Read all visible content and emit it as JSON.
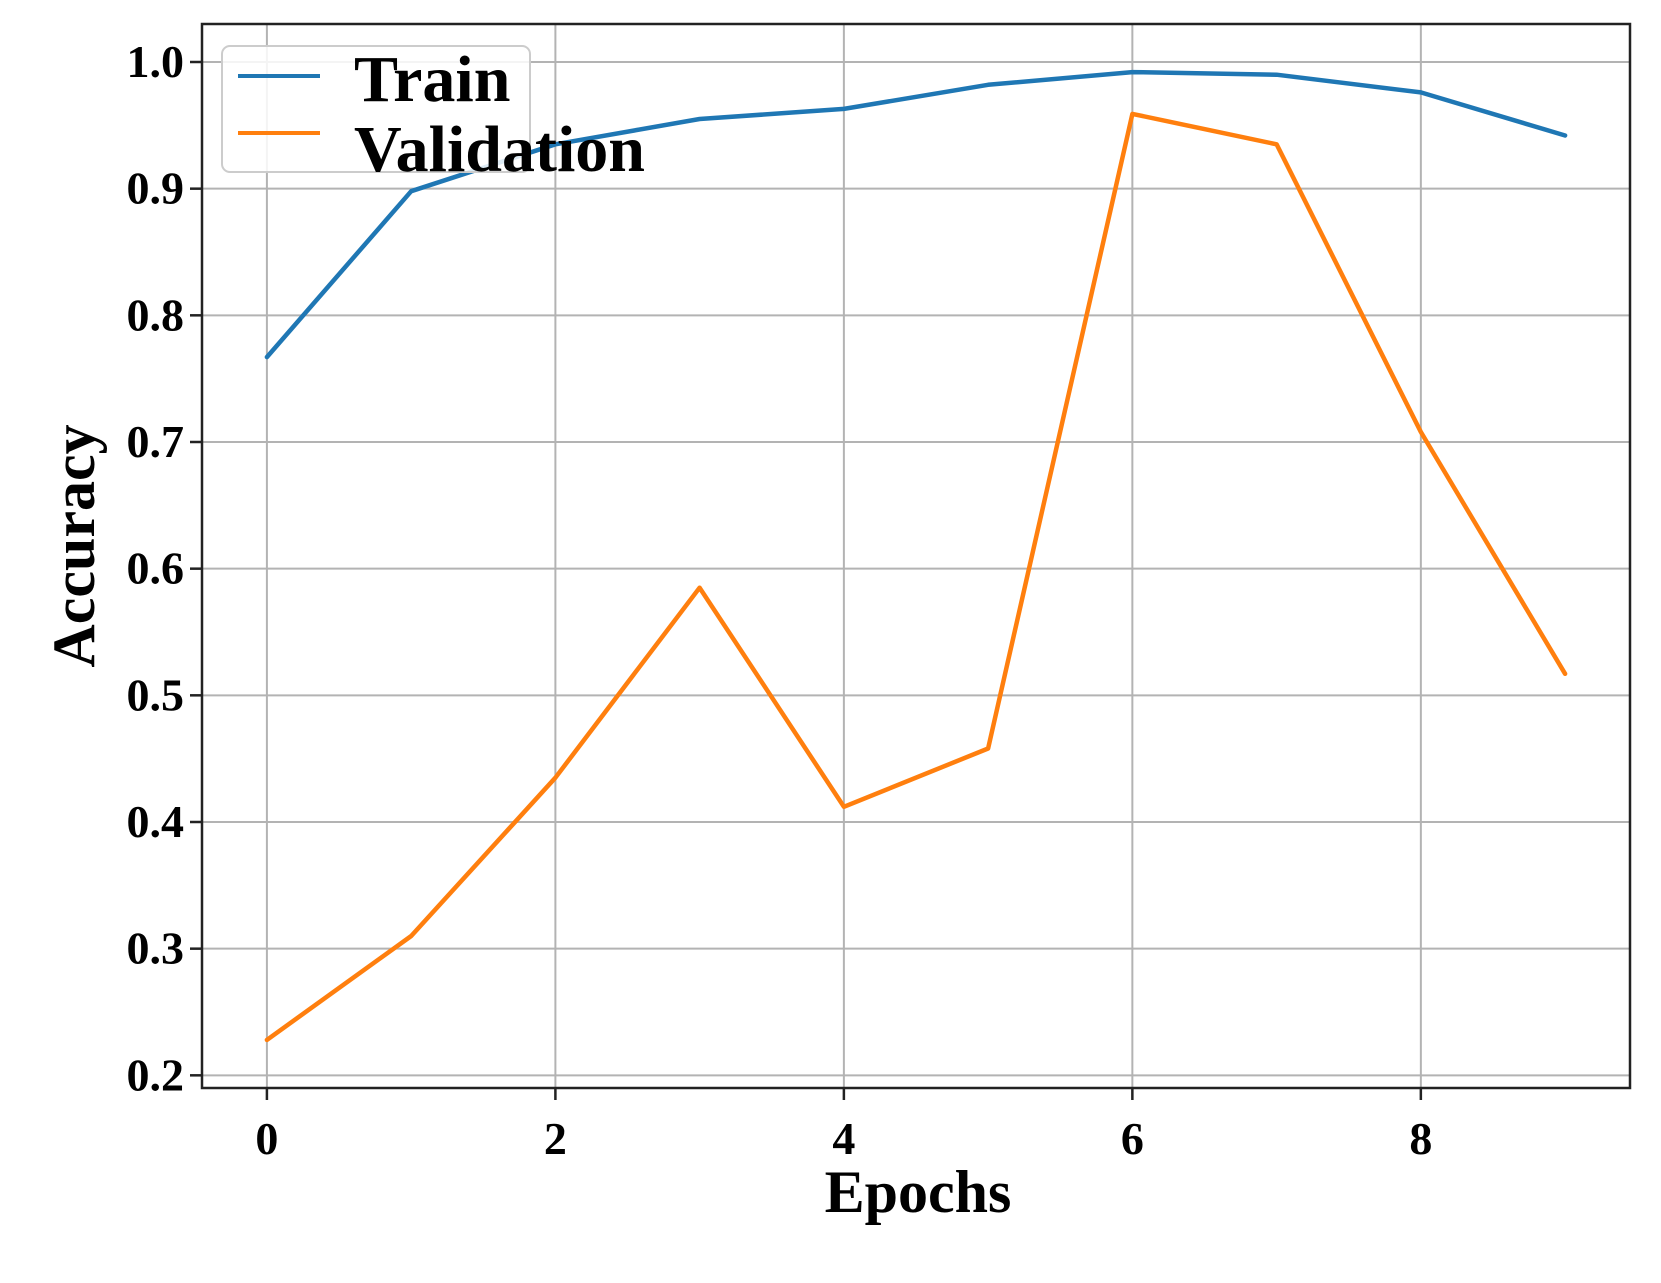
{
  "chart_data": {
    "type": "line",
    "title": "",
    "xlabel": "Epochs",
    "ylabel": "Accuracy",
    "x": [
      0,
      1,
      2,
      3,
      4,
      5,
      6,
      7,
      8,
      9
    ],
    "xlim": [
      -0.45,
      9.45
    ],
    "ylim": [
      0.19,
      1.03
    ],
    "xticks": [
      0,
      2,
      4,
      6,
      8
    ],
    "xtick_labels": [
      "0",
      "2",
      "4",
      "6",
      "8"
    ],
    "yticks": [
      0.2,
      0.3,
      0.4,
      0.5,
      0.6,
      0.7,
      0.8,
      0.9,
      1.0
    ],
    "ytick_labels": [
      "0.2",
      "0.3",
      "0.4",
      "0.5",
      "0.6",
      "0.7",
      "0.8",
      "0.9",
      "1.0"
    ],
    "grid": true,
    "legend_position": "top-left",
    "series": [
      {
        "name": "Train",
        "color": "#1f77b4",
        "values": [
          0.767,
          0.898,
          0.935,
          0.955,
          0.963,
          0.982,
          0.992,
          0.99,
          0.976,
          0.942
        ]
      },
      {
        "name": "Validation",
        "color": "#ff7f0e",
        "values": [
          0.228,
          0.31,
          0.435,
          0.585,
          0.412,
          0.458,
          0.959,
          0.935,
          0.708,
          0.517
        ]
      }
    ]
  }
}
